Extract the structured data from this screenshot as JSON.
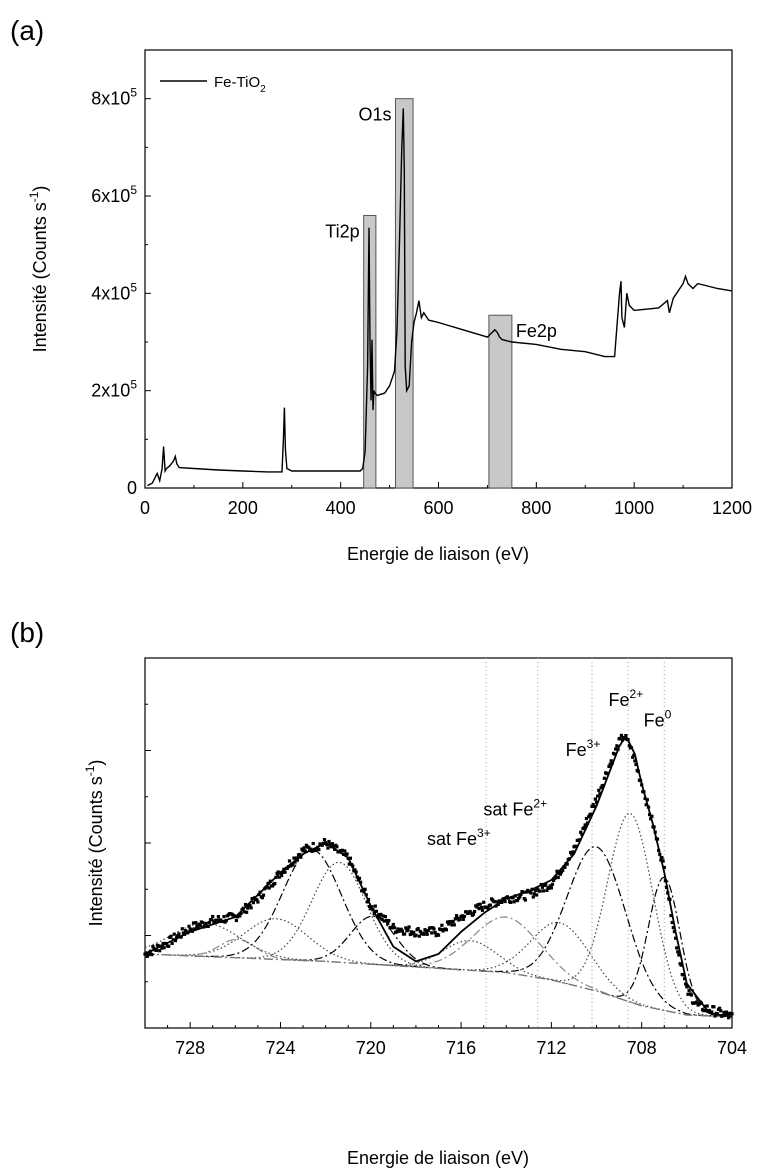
{
  "chart_data": [
    {
      "panel_label": "(a)",
      "type": "line",
      "xlabel": "Energie de liaison (eV)",
      "ylabel": "Intensité (Counts s-1)",
      "ylabel_parts": {
        "text": "Intensité (Counts s",
        "sup": "-1",
        "close": ")"
      },
      "xlim": [
        0,
        1200
      ],
      "ylim": [
        0,
        900000
      ],
      "xticks": [
        0,
        200,
        400,
        600,
        800,
        1000,
        1200
      ],
      "yticks": [
        {
          "value": 0,
          "label": "0"
        },
        {
          "value": 200000,
          "label": "2x10",
          "sup": "5"
        },
        {
          "value": 400000,
          "label": "4x10",
          "sup": "5"
        },
        {
          "value": 600000,
          "label": "6x10",
          "sup": "5"
        },
        {
          "value": 800000,
          "label": "8x10",
          "sup": "5"
        }
      ],
      "legend": {
        "position": "top-left",
        "label": "Fe-TiO2",
        "parts": {
          "base": "Fe-TiO",
          "sub": "2"
        }
      },
      "series": [
        {
          "name": "Fe-TiO2",
          "x": [
            5,
            15,
            25,
            30,
            35,
            38,
            41,
            44,
            50,
            58,
            62,
            65,
            70,
            100,
            150,
            200,
            250,
            280,
            283,
            285,
            287,
            290,
            300,
            350,
            400,
            440,
            445,
            450,
            455,
            458,
            460,
            462,
            464,
            466,
            468,
            470,
            475,
            480,
            490,
            500,
            510,
            515,
            520,
            525,
            528,
            530,
            532,
            535,
            540,
            545,
            550,
            555,
            560,
            565,
            570,
            580,
            600,
            650,
            700,
            710,
            715,
            720,
            725,
            730,
            750,
            800,
            850,
            900,
            940,
            960,
            970,
            973,
            975,
            980,
            985,
            990,
            1000,
            1050,
            1068,
            1072,
            1080,
            1100,
            1105,
            1110,
            1120,
            1130,
            1150,
            1170,
            1200
          ],
          "y": [
            5000,
            10000,
            30000,
            15000,
            40000,
            85000,
            35000,
            40000,
            45000,
            55000,
            65000,
            50000,
            42000,
            40000,
            37000,
            35000,
            33000,
            33000,
            100000,
            165000,
            80000,
            40000,
            35000,
            35000,
            35000,
            35000,
            40000,
            75000,
            250000,
            535000,
            300000,
            180000,
            305000,
            160000,
            200000,
            195000,
            190000,
            192000,
            195000,
            210000,
            240000,
            320000,
            500000,
            700000,
            780000,
            650000,
            250000,
            200000,
            210000,
            300000,
            340000,
            360000,
            385000,
            350000,
            360000,
            345000,
            340000,
            325000,
            310000,
            320000,
            325000,
            320000,
            310000,
            305000,
            300000,
            295000,
            285000,
            280000,
            270000,
            270000,
            400000,
            425000,
            350000,
            330000,
            400000,
            375000,
            365000,
            370000,
            385000,
            360000,
            390000,
            420000,
            435000,
            420000,
            410000,
            420000,
            415000,
            410000,
            405000
          ]
        }
      ],
      "regions": [
        {
          "label": "Ti2p",
          "x": [
            447,
            472
          ],
          "ytop": 560000
        },
        {
          "label": "O1s",
          "x": [
            512,
            548
          ],
          "ytop": 800000
        },
        {
          "label": "Fe2p",
          "x": [
            703,
            750
          ],
          "ytop": 355000
        }
      ]
    },
    {
      "panel_label": "(b)",
      "type": "scatter",
      "xlabel": "Energie de liaison (eV)",
      "ylabel": "Intensité (Counts s-1)",
      "ylabel_parts": {
        "text": "Intensité (Counts s",
        "sup": "-1",
        "close": ")"
      },
      "x_reversed": true,
      "xlim": [
        730,
        704
      ],
      "ylim": [
        0,
        1
      ],
      "xticks": [
        728,
        724,
        720,
        716,
        712,
        708,
        704
      ],
      "grid": "vertical dotted reference lines at 714.9, 712.6, 710.2, 708.6, 707.0",
      "reference_lines": [
        714.9,
        712.6,
        710.2,
        708.6,
        707.0
      ],
      "annotations": [
        {
          "base": "Fe",
          "sup": "2+",
          "x": 708.7,
          "y": 0.87
        },
        {
          "base": "Fe",
          "sup": "0",
          "x": 707.3,
          "y": 0.815
        },
        {
          "base": "Fe",
          "sup": "3+",
          "x": 710.6,
          "y": 0.735
        },
        {
          "base": "sat Fe",
          "sup": "2+",
          "x": 713.6,
          "y": 0.575
        },
        {
          "base": "sat Fe",
          "sup": "3+",
          "x": 716.1,
          "y": 0.495
        }
      ],
      "measured_points": {
        "x": [
          730,
          729,
          728,
          727,
          726,
          725,
          724,
          723,
          722,
          721,
          720,
          719,
          718,
          717,
          716,
          715,
          714,
          713,
          712,
          711,
          710,
          709.5,
          709,
          708.8,
          708.5,
          708,
          707.5,
          707,
          706.5,
          706,
          705.5,
          705,
          704
        ],
        "y": [
          0.2,
          0.23,
          0.27,
          0.29,
          0.3,
          0.35,
          0.42,
          0.48,
          0.5,
          0.46,
          0.33,
          0.27,
          0.26,
          0.26,
          0.3,
          0.33,
          0.35,
          0.36,
          0.39,
          0.48,
          0.62,
          0.7,
          0.77,
          0.79,
          0.76,
          0.66,
          0.55,
          0.43,
          0.24,
          0.1,
          0.06,
          0.05,
          0.03
        ]
      },
      "fit_envelope": {
        "x": [
          730,
          728,
          726,
          724,
          723,
          722,
          721,
          720,
          719,
          718,
          717,
          716,
          715,
          714,
          713,
          712,
          711,
          710,
          709.5,
          709,
          708.7,
          708.3,
          708,
          707.5,
          707,
          706.5,
          706,
          705,
          704
        ],
        "y": [
          0.2,
          0.26,
          0.3,
          0.42,
          0.47,
          0.5,
          0.46,
          0.33,
          0.22,
          0.18,
          0.2,
          0.26,
          0.31,
          0.35,
          0.37,
          0.4,
          0.47,
          0.6,
          0.68,
          0.76,
          0.79,
          0.74,
          0.66,
          0.55,
          0.42,
          0.26,
          0.12,
          0.04,
          0.03
        ]
      },
      "background": {
        "x": [
          730,
          726,
          722,
          718,
          714,
          712,
          710,
          708,
          706,
          704
        ],
        "y": [
          0.2,
          0.19,
          0.18,
          0.165,
          0.15,
          0.13,
          0.1,
          0.06,
          0.035,
          0.03
        ]
      },
      "components": [
        {
          "center": 708.5,
          "height": 0.51,
          "width": 1.0,
          "style": "dotted"
        },
        {
          "center": 707.0,
          "height": 0.36,
          "width": 0.7,
          "style": "dashdot"
        },
        {
          "center": 710.0,
          "height": 0.39,
          "width": 1.3,
          "style": "dashdot"
        },
        {
          "center": 711.6,
          "height": 0.16,
          "width": 1.3,
          "style": "dotted"
        },
        {
          "center": 714.0,
          "height": 0.15,
          "width": 1.5,
          "style": "dashdot-gray"
        },
        {
          "center": 715.6,
          "height": 0.08,
          "width": 1.2,
          "style": "dotted"
        },
        {
          "center": 719.9,
          "height": 0.13,
          "width": 1.0,
          "style": "dashdot"
        },
        {
          "center": 721.4,
          "height": 0.27,
          "width": 1.2,
          "style": "dotted"
        },
        {
          "center": 722.6,
          "height": 0.3,
          "width": 1.3,
          "style": "dashdot"
        },
        {
          "center": 724.2,
          "height": 0.11,
          "width": 1.4,
          "style": "dotted"
        },
        {
          "center": 725.9,
          "height": 0.05,
          "width": 0.8,
          "style": "dashdot-gray"
        },
        {
          "center": 727.3,
          "height": 0.09,
          "width": 1.5,
          "style": "dotted"
        }
      ]
    }
  ]
}
